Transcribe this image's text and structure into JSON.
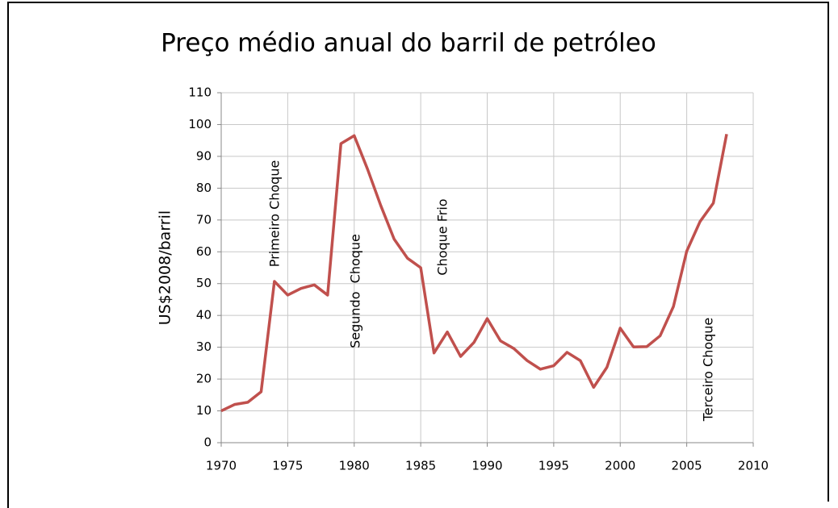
{
  "chart_data": {
    "type": "line",
    "title": "Preço médio anual do barril de petróleo",
    "y_label": "US$2008/barril",
    "x": [
      1970,
      1971,
      1972,
      1973,
      1974,
      1975,
      1976,
      1977,
      1978,
      1979,
      1980,
      1981,
      1982,
      1983,
      1984,
      1985,
      1986,
      1987,
      1988,
      1989,
      1990,
      1991,
      1992,
      1993,
      1994,
      1995,
      1996,
      1997,
      1998,
      1999,
      2000,
      2001,
      2002,
      2003,
      2004,
      2005,
      2006,
      2007,
      2008
    ],
    "series": [
      {
        "name": "Preço",
        "color": "#c0504d",
        "values": [
          10,
          12,
          12.7,
          16,
          50.7,
          46.4,
          48.5,
          49.6,
          46.4,
          94,
          96.5,
          86,
          74.5,
          64,
          58,
          55,
          28.2,
          34.8,
          27.1,
          31.5,
          39,
          32,
          29.6,
          25.8,
          23.1,
          24.2,
          28.4,
          25.8,
          17.4,
          23.7,
          36,
          30.1,
          30.2,
          33.6,
          42.8,
          60.2,
          69.5,
          75.3,
          97
        ]
      }
    ],
    "xlim": [
      1970,
      2010
    ],
    "xticks": [
      1970,
      1975,
      1980,
      1985,
      1990,
      1995,
      2000,
      2005,
      2010
    ],
    "ylim": [
      0,
      110
    ],
    "yticks": [
      0,
      10,
      20,
      30,
      40,
      50,
      60,
      70,
      80,
      90,
      100,
      110
    ],
    "grid": true,
    "annotations": [
      "Primeiro Choque",
      "Segundo  Choque",
      "Choque Frio",
      "Terceiro Choque"
    ]
  }
}
